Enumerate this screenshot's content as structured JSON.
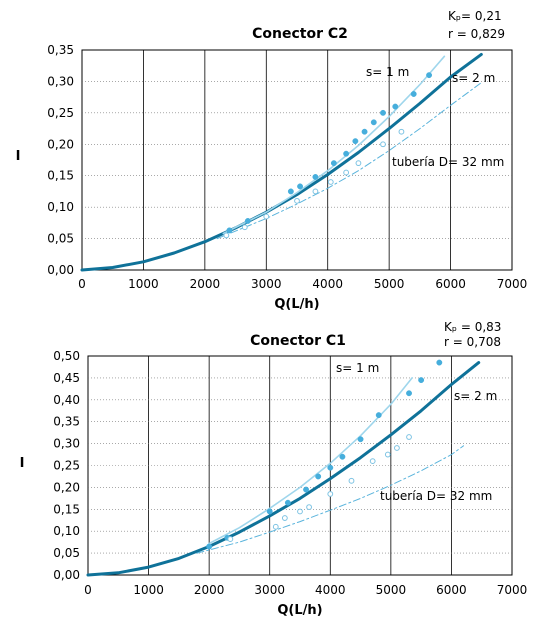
{
  "chart_data": [
    {
      "type": "line",
      "title": "Conector C2",
      "xlabel": "Q(L/h)",
      "ylabel": "I",
      "xlim": [
        0,
        7000
      ],
      "ylim": [
        0,
        0.35
      ],
      "x_ticks": [
        "0",
        "1000",
        "2000",
        "3000",
        "4000",
        "5000",
        "6000",
        "7000"
      ],
      "y_ticks": [
        "0,00",
        "0,05",
        "0,10",
        "0,15",
        "0,20",
        "0,25",
        "0,30",
        "0,35"
      ],
      "grid": "vertical",
      "stats": {
        "kp": "Kₚ= 0,21",
        "r": "r = 0,829"
      },
      "annotations": {
        "s1": "s= 1 m",
        "s2": "s= 2 m",
        "pipe": "tubería D= 32 mm"
      },
      "colors": {
        "model_s2": "#0f7299",
        "model_s1": "#9fd6ec",
        "pipe": "#5ab4dc",
        "points_s1": "#46aedc",
        "points_s2": "#7dc3e3"
      },
      "series": [
        {
          "role": "model_s2",
          "x": [
            0,
            500,
            1000,
            1500,
            2000,
            2500,
            3000,
            3500,
            4000,
            4500,
            5000,
            5500,
            6000,
            6500
          ],
          "y": [
            0,
            0.004,
            0.013,
            0.027,
            0.045,
            0.067,
            0.092,
            0.12,
            0.152,
            0.187,
            0.225,
            0.265,
            0.307,
            0.343
          ]
        },
        {
          "role": "model_s1",
          "x": [
            2300,
            3000,
            3500,
            4000,
            4500,
            5000,
            5500,
            5900
          ],
          "y": [
            0.058,
            0.092,
            0.123,
            0.158,
            0.198,
            0.244,
            0.295,
            0.34
          ]
        },
        {
          "role": "pipe",
          "x": [
            2200,
            3000,
            3500,
            4000,
            4500,
            5000,
            5500,
            6000,
            6500
          ],
          "y": [
            0.05,
            0.082,
            0.105,
            0.13,
            0.158,
            0.19,
            0.225,
            0.262,
            0.298
          ]
        },
        {
          "role": "points_s1",
          "x": [
            2400,
            2700,
            3400,
            3550,
            3800,
            4100,
            4300,
            4450,
            4600,
            4750,
            4900,
            5100,
            5400,
            5650
          ],
          "y": [
            0.063,
            0.078,
            0.125,
            0.133,
            0.148,
            0.17,
            0.185,
            0.205,
            0.22,
            0.235,
            0.25,
            0.26,
            0.28,
            0.31
          ]
        },
        {
          "role": "points_s2",
          "x": [
            2350,
            2650,
            3000,
            3500,
            3800,
            4050,
            4300,
            4500,
            4900,
            5200
          ],
          "y": [
            0.055,
            0.068,
            0.085,
            0.11,
            0.125,
            0.14,
            0.155,
            0.17,
            0.2,
            0.22
          ]
        }
      ]
    },
    {
      "type": "line",
      "title": "Conector C1",
      "xlabel": "Q(L/h)",
      "ylabel": "I",
      "xlim": [
        0,
        7000
      ],
      "ylim": [
        0,
        0.5
      ],
      "x_ticks": [
        "0",
        "1000",
        "2000",
        "3000",
        "4000",
        "5000",
        "6000",
        "7000"
      ],
      "y_ticks": [
        "0,00",
        "0,05",
        "0,10",
        "0,15",
        "0,20",
        "0,25",
        "0,30",
        "0,35",
        "0,40",
        "0,45",
        "0,50"
      ],
      "grid": "vertical",
      "stats": {
        "kp": "Kₚ     = 0,83",
        "r": "r = 0,708"
      },
      "annotations": {
        "s1": "s= 1 m",
        "s2": "s= 2 m",
        "pipe": "tubería  D= 32 mm"
      },
      "colors": {
        "model_s2": "#0f7299",
        "model_s1": "#9fd6ec",
        "pipe": "#5ab4dc",
        "points_s1": "#46aedc",
        "points_s2": "#7dc3e3"
      },
      "series": [
        {
          "role": "model_s2",
          "x": [
            0,
            500,
            1000,
            1500,
            2000,
            2500,
            3000,
            3500,
            4000,
            4500,
            5000,
            5500,
            6000,
            6450
          ],
          "y": [
            0,
            0.005,
            0.018,
            0.038,
            0.065,
            0.098,
            0.135,
            0.175,
            0.22,
            0.268,
            0.32,
            0.375,
            0.435,
            0.485
          ]
        },
        {
          "role": "model_s1",
          "x": [
            2000,
            2500,
            3000,
            3500,
            4000,
            4500,
            5000,
            5350
          ],
          "y": [
            0.072,
            0.108,
            0.152,
            0.2,
            0.255,
            0.318,
            0.39,
            0.45
          ]
        },
        {
          "role": "pipe",
          "x": [
            1800,
            2500,
            3000,
            3500,
            4000,
            4500,
            5000,
            5500,
            6000,
            6200
          ],
          "y": [
            0.05,
            0.075,
            0.098,
            0.122,
            0.148,
            0.175,
            0.205,
            0.238,
            0.275,
            0.295
          ]
        },
        {
          "role": "points_s1",
          "x": [
            2000,
            2300,
            3000,
            3300,
            3600,
            3800,
            4000,
            4200,
            4500,
            4800,
            5300,
            5500,
            5800
          ],
          "y": [
            0.065,
            0.085,
            0.145,
            0.165,
            0.195,
            0.225,
            0.245,
            0.27,
            0.31,
            0.365,
            0.415,
            0.445,
            0.485
          ]
        },
        {
          "role": "points_s2",
          "x": [
            2350,
            3100,
            3250,
            3500,
            3650,
            4000,
            4350,
            4700,
            4950,
            5100,
            5300
          ],
          "y": [
            0.082,
            0.11,
            0.13,
            0.145,
            0.155,
            0.185,
            0.215,
            0.26,
            0.275,
            0.29,
            0.315
          ]
        }
      ]
    }
  ]
}
